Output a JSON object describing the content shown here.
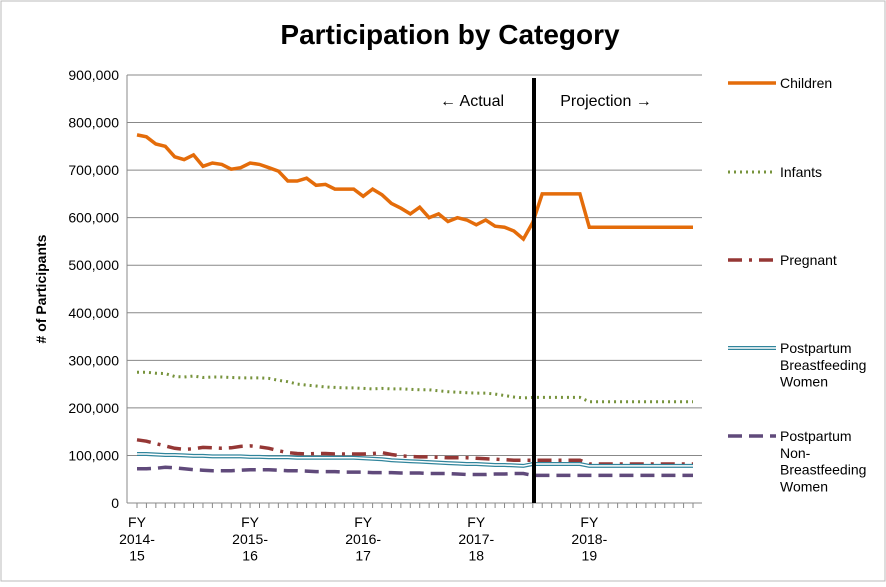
{
  "chart_data": {
    "type": "line",
    "title": "Participation by Category",
    "y_label": "# of Participants",
    "annotations": [
      "← Actual",
      "Projection →"
    ],
    "categories": [
      "FY\n2014-\n15",
      null,
      null,
      null,
      null,
      null,
      null,
      null,
      null,
      null,
      null,
      null,
      "FY\n2015-\n16",
      null,
      null,
      null,
      null,
      null,
      null,
      null,
      null,
      null,
      null,
      null,
      "FY\n2016-\n17",
      null,
      null,
      null,
      null,
      null,
      null,
      null,
      null,
      null,
      null,
      null,
      "FY\n2017-\n18",
      null,
      null,
      null,
      null,
      null,
      null,
      null,
      null,
      null,
      null,
      null,
      "FY\n2018-\n19",
      null,
      null,
      null,
      null,
      null,
      null,
      null,
      null,
      null,
      null,
      null
    ],
    "ylim": [
      0,
      900000
    ],
    "yticks": [
      0,
      {
        "value": 100000,
        "label": "100,000"
      },
      {
        "value": 200000,
        "label": "200,000"
      },
      {
        "value": 300000,
        "label": "300,000"
      },
      {
        "value": 400000,
        "label": "400,000"
      },
      {
        "value": 500000,
        "label": "500,000"
      },
      {
        "value": 600000,
        "label": "600,000"
      },
      {
        "value": 700000,
        "label": "700,000"
      },
      {
        "value": 800000,
        "label": "800,000"
      },
      {
        "value": 900000,
        "label": "900,000"
      }
    ],
    "grid": true,
    "series": [
      {
        "name": "Children",
        "color": "#e46c0a",
        "style": "solid",
        "values": [
          774000,
          770000,
          755000,
          750000,
          728000,
          722000,
          732000,
          708000,
          715000,
          712000,
          702000,
          705000,
          715000,
          712000,
          705000,
          698000,
          677000,
          677000,
          683000,
          668000,
          670000,
          660000,
          660000,
          660000,
          645000,
          660000,
          648000,
          630000,
          620000,
          608000,
          622000,
          600000,
          608000,
          592000,
          600000,
          595000,
          585000,
          595000,
          582000,
          580000,
          572000,
          555000,
          590000,
          650000,
          650000,
          650000,
          650000,
          650000,
          580000,
          580000,
          580000,
          580000,
          580000,
          580000,
          580000,
          580000,
          580000,
          580000,
          580000,
          580000
        ]
      },
      {
        "name": "Infants",
        "color": "#77933c",
        "style": "dotted",
        "values": [
          275000,
          275000,
          273000,
          272000,
          266000,
          265000,
          267000,
          264000,
          265000,
          265000,
          264000,
          263000,
          263000,
          263000,
          262000,
          258000,
          255000,
          250000,
          248000,
          246000,
          244000,
          243000,
          242000,
          242000,
          241000,
          240000,
          241000,
          240000,
          240000,
          239000,
          238000,
          238000,
          236000,
          234000,
          233000,
          232000,
          231000,
          231000,
          229000,
          226000,
          223000,
          221000,
          222000,
          222000,
          222000,
          222000,
          222000,
          222000,
          213000,
          213000,
          213000,
          213000,
          213000,
          213000,
          213000,
          213000,
          213000,
          213000,
          213000,
          213000
        ]
      },
      {
        "name": "Pregnant",
        "color": "#953735",
        "style": "dashdot",
        "values": [
          133000,
          130000,
          125000,
          120000,
          115000,
          113000,
          114000,
          117000,
          116000,
          115000,
          116000,
          119000,
          120000,
          118000,
          115000,
          110000,
          106000,
          104000,
          103000,
          104000,
          104000,
          103000,
          103000,
          103000,
          103000,
          104000,
          106000,
          102000,
          99000,
          98000,
          97000,
          97000,
          96000,
          95000,
          95000,
          95000,
          94000,
          93000,
          92000,
          91000,
          90000,
          90000,
          90000,
          90000,
          90000,
          90000,
          90000,
          90000,
          82000,
          82000,
          82000,
          82000,
          82000,
          82000,
          82000,
          82000,
          82000,
          82000,
          82000,
          82000
        ]
      },
      {
        "name": "Postpartum\nBreastfeeding\nWomen",
        "color": "#31859c",
        "style": "double",
        "values": [
          103000,
          103000,
          102000,
          101000,
          101000,
          100000,
          99000,
          99000,
          98000,
          98000,
          98000,
          98000,
          97000,
          97000,
          96000,
          96000,
          96000,
          95000,
          95000,
          95000,
          95000,
          95000,
          95000,
          95000,
          94000,
          93000,
          92000,
          90000,
          89000,
          88000,
          87000,
          86000,
          85000,
          84000,
          83000,
          82000,
          82000,
          81000,
          80000,
          80000,
          79000,
          78000,
          82000,
          82000,
          82000,
          82000,
          82000,
          82000,
          78000,
          78000,
          78000,
          78000,
          78000,
          78000,
          78000,
          78000,
          78000,
          78000,
          78000,
          78000
        ]
      },
      {
        "name": "Postpartum\nNon-\nBreastfeeding\nWomen",
        "color": "#604a7b",
        "style": "dashed",
        "values": [
          72000,
          72000,
          73000,
          75000,
          74000,
          72000,
          70000,
          69000,
          68000,
          68000,
          68000,
          69000,
          70000,
          70000,
          70000,
          69000,
          68000,
          68000,
          67000,
          66000,
          66000,
          66000,
          65000,
          65000,
          65000,
          64000,
          64000,
          64000,
          63000,
          63000,
          63000,
          62000,
          62000,
          62000,
          61000,
          60000,
          60000,
          60000,
          61000,
          61000,
          62000,
          62000,
          58000,
          58000,
          58000,
          58000,
          58000,
          58000,
          58000,
          58000,
          58000,
          58000,
          58000,
          58000,
          58000,
          58000,
          58000,
          58000,
          58000,
          58000
        ]
      }
    ]
  }
}
